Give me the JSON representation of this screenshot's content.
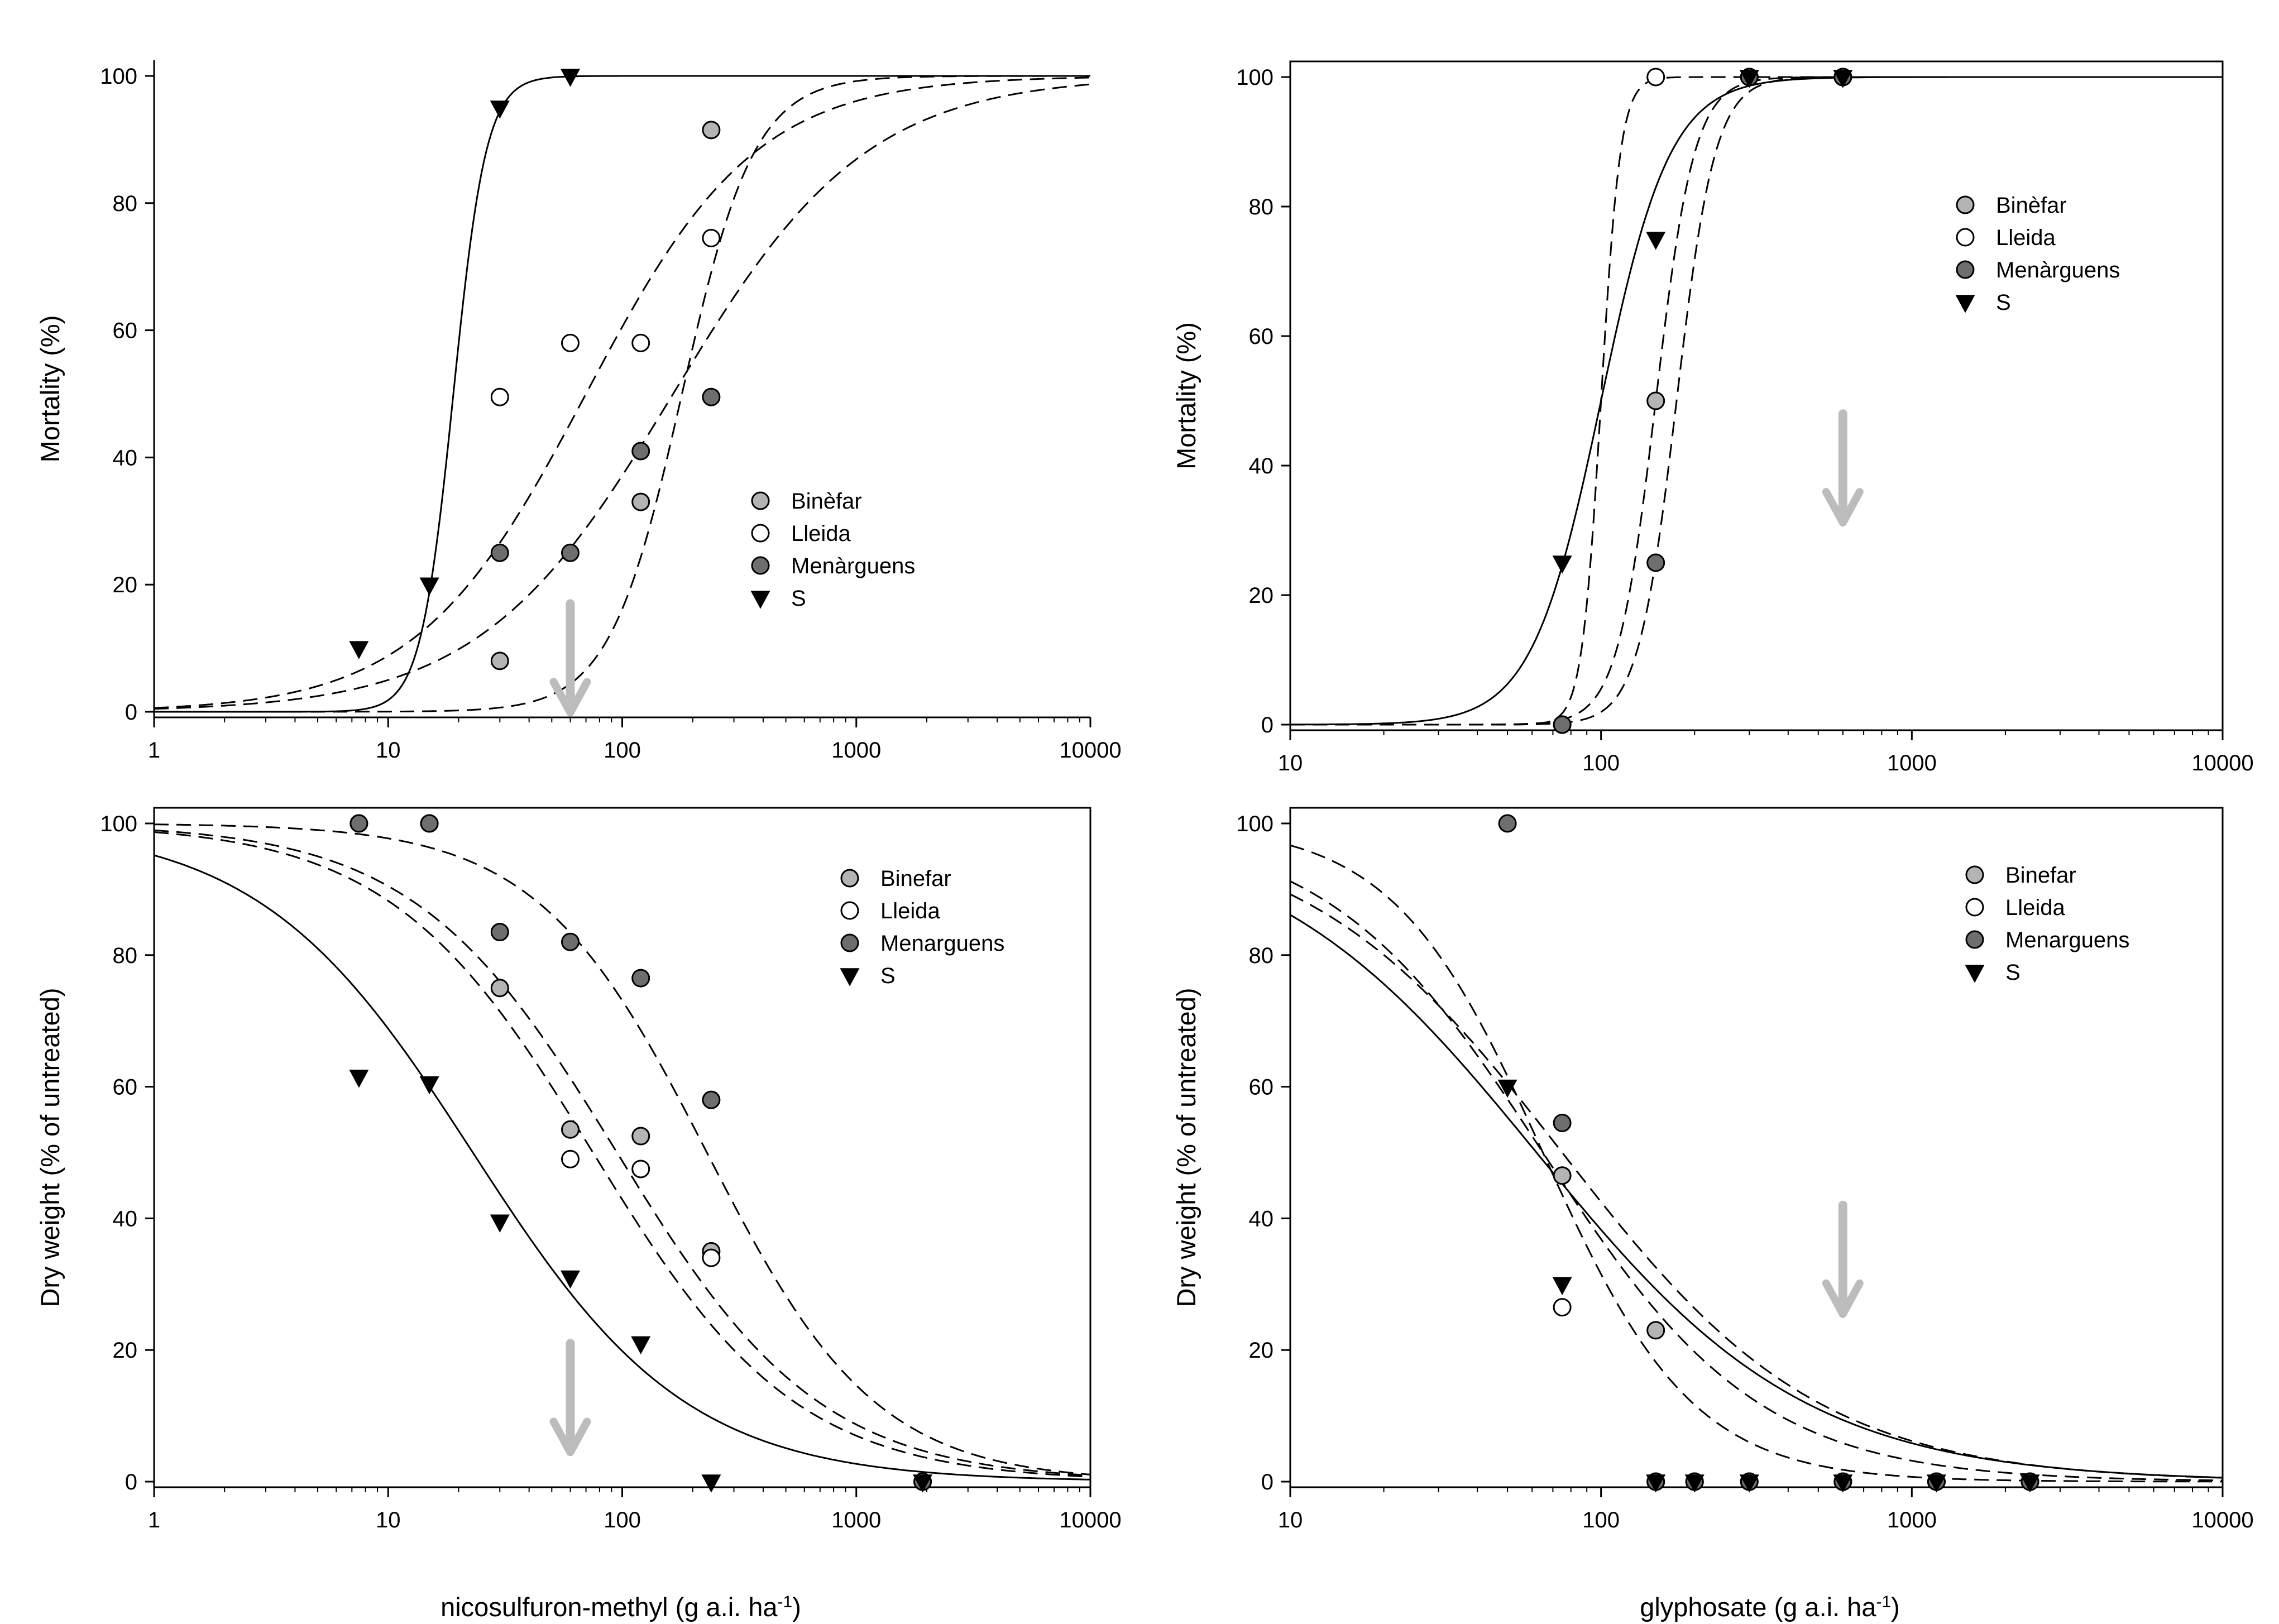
{
  "colors": {
    "Binefar": "#b4b4b4",
    "Lleida": "#ffffff",
    "Menarguens": "#6e6e6e",
    "S": "#000000",
    "arrow": "#bcbcbc"
  },
  "axis_titles": {
    "x_left": "nicosulfuron-methyl (g a.i. ha",
    "x_right": "glyphosate (g a.i. ha",
    "x_sup": "-1",
    "x_close": ")"
  },
  "chart_data": [
    {
      "id": "top-left",
      "type": "scatter",
      "title": "",
      "xscale": "log",
      "xlim": [
        1,
        10000
      ],
      "ylim": [
        0,
        100
      ],
      "xticks": [
        "1",
        "10",
        "100",
        "1000",
        "10000"
      ],
      "yticks": [
        "0",
        "20",
        "40",
        "60",
        "80",
        "100"
      ],
      "ylabel": "Mortality (%)",
      "xlabel": "",
      "legend": {
        "position": "center-right",
        "entries": [
          {
            "key": "Binefar",
            "label": "Binèfar"
          },
          {
            "key": "Lleida",
            "label": "Lleida"
          },
          {
            "key": "Menarguens",
            "label": "Menàrguens"
          },
          {
            "key": "S",
            "label": "S"
          }
        ]
      },
      "arrow_at_dose": 60,
      "series": [
        {
          "key": "Binefar",
          "marker": "circle",
          "points": [
            [
              30,
              8
            ],
            [
              120,
              33
            ],
            [
              240,
              91.5
            ]
          ],
          "curve": {
            "kind": "increasing",
            "ed50": 180,
            "slope": 2.8,
            "line": "dashed"
          }
        },
        {
          "key": "Lleida",
          "marker": "circle",
          "points": [
            [
              30,
              49.5
            ],
            [
              60,
              58
            ],
            [
              120,
              58
            ],
            [
              240,
              74.5
            ]
          ],
          "curve": {
            "kind": "increasing",
            "ed50": 70,
            "slope": 1.2,
            "line": "dashed"
          }
        },
        {
          "key": "Menarguens",
          "marker": "circle",
          "points": [
            [
              30,
              25
            ],
            [
              60,
              25
            ],
            [
              120,
              41
            ],
            [
              240,
              49.5
            ]
          ],
          "curve": {
            "kind": "increasing",
            "ed50": 165,
            "slope": 1.05,
            "line": "dashed"
          }
        },
        {
          "key": "S",
          "marker": "triangle",
          "points": [
            [
              7.5,
              10
            ],
            [
              15,
              20
            ],
            [
              30,
              95
            ],
            [
              60,
              100
            ]
          ],
          "curve": {
            "kind": "increasing",
            "ed50": 19,
            "slope": 6.2,
            "line": "solid"
          }
        }
      ]
    },
    {
      "id": "top-right",
      "type": "scatter",
      "title": "",
      "xscale": "log",
      "xlim": [
        10,
        10000
      ],
      "ylim": [
        0,
        100
      ],
      "xticks": [
        "10",
        "100",
        "1000",
        "10000"
      ],
      "yticks": [
        "0",
        "20",
        "40",
        "60",
        "80",
        "100"
      ],
      "ylabel": "Mortality (%)",
      "xlabel": "",
      "legend": {
        "position": "top-right",
        "entries": [
          {
            "key": "Binefar",
            "label": "Binèfar"
          },
          {
            "key": "Lleida",
            "label": "Lleida"
          },
          {
            "key": "Menarguens",
            "label": "Menàrguens"
          },
          {
            "key": "S",
            "label": "S"
          }
        ]
      },
      "arrow_at_dose": 600,
      "series": [
        {
          "key": "Binefar",
          "marker": "circle",
          "points": [
            [
              75,
              0
            ],
            [
              150,
              50
            ],
            [
              300,
              100
            ],
            [
              600,
              100
            ]
          ],
          "curve": {
            "kind": "increasing",
            "ed50": 150,
            "slope": 7,
            "line": "dashed"
          }
        },
        {
          "key": "Lleida",
          "marker": "circle",
          "points": [
            [
              75,
              0
            ],
            [
              150,
              100
            ],
            [
              300,
              100
            ],
            [
              600,
              100
            ]
          ],
          "curve": {
            "kind": "increasing",
            "ed50": 100,
            "slope": 14,
            "line": "dashed"
          }
        },
        {
          "key": "Menarguens",
          "marker": "circle",
          "points": [
            [
              75,
              0
            ],
            [
              150,
              25
            ],
            [
              300,
              100
            ],
            [
              600,
              100
            ]
          ],
          "curve": {
            "kind": "increasing",
            "ed50": 175,
            "slope": 7,
            "line": "dashed"
          }
        },
        {
          "key": "S",
          "marker": "triangle",
          "points": [
            [
              75,
              25
            ],
            [
              150,
              75
            ],
            [
              300,
              100
            ],
            [
              600,
              100
            ]
          ],
          "curve": {
            "kind": "increasing",
            "ed50": 100,
            "slope": 3.9,
            "line": "solid"
          }
        }
      ]
    },
    {
      "id": "bottom-left",
      "type": "scatter",
      "title": "",
      "xscale": "log",
      "xlim": [
        1,
        10000
      ],
      "ylim": [
        0,
        100
      ],
      "xticks": [
        "1",
        "10",
        "100",
        "1000",
        "10000"
      ],
      "yticks": [
        "0",
        "20",
        "40",
        "60",
        "80",
        "100"
      ],
      "ylabel": "Dry weight (% of untreated)",
      "xlabel": "nicosulfuron-methyl (g a.i. ha-1)",
      "legend": {
        "position": "top-right",
        "entries": [
          {
            "key": "Binefar",
            "label": "Binefar"
          },
          {
            "key": "Lleida",
            "label": "Lleida"
          },
          {
            "key": "Menarguens",
            "label": "Menarguens"
          },
          {
            "key": "S",
            "label": "S"
          }
        ]
      },
      "arrow_at_dose": 60,
      "series": [
        {
          "key": "Binefar",
          "marker": "circle",
          "points": [
            [
              7.5,
              100
            ],
            [
              15,
              100
            ],
            [
              30,
              75
            ],
            [
              60,
              53.5
            ],
            [
              120,
              52.5
            ],
            [
              240,
              35
            ],
            [
              1920,
              0
            ]
          ],
          "curve": {
            "kind": "decreasing",
            "ed50": 95,
            "slope": 1.0,
            "line": "dashed"
          }
        },
        {
          "key": "Lleida",
          "marker": "circle",
          "points": [
            [
              60,
              49
            ],
            [
              120,
              47.5
            ],
            [
              240,
              34
            ]
          ],
          "curve": {
            "kind": "decreasing",
            "ed50": 75,
            "slope": 1.0,
            "line": "dashed"
          }
        },
        {
          "key": "Menarguens",
          "marker": "circle",
          "points": [
            [
              7.5,
              100
            ],
            [
              15,
              100
            ],
            [
              30,
              83.5
            ],
            [
              60,
              82
            ],
            [
              120,
              76.5
            ],
            [
              240,
              58
            ],
            [
              1920,
              0
            ]
          ],
          "curve": {
            "kind": "decreasing",
            "ed50": 230,
            "slope": 1.2,
            "line": "dashed"
          }
        },
        {
          "key": "S",
          "marker": "triangle",
          "points": [
            [
              7.5,
              61.5
            ],
            [
              15,
              60.5
            ],
            [
              30,
              39.5
            ],
            [
              60,
              31
            ],
            [
              120,
              21
            ],
            [
              240,
              0
            ],
            [
              1920,
              0
            ]
          ],
          "curve": {
            "kind": "decreasing",
            "ed50": 23,
            "slope": 0.95,
            "line": "solid"
          }
        }
      ]
    },
    {
      "id": "bottom-right",
      "type": "scatter",
      "title": "",
      "xscale": "log",
      "xlim": [
        10,
        10000
      ],
      "ylim": [
        0,
        100
      ],
      "xticks": [
        "10",
        "100",
        "1000",
        "10000"
      ],
      "yticks": [
        "0",
        "20",
        "40",
        "60",
        "80",
        "100"
      ],
      "ylabel": "Dry weight (% of untreated)",
      "xlabel": "glyphosate (g a.i. ha-1)",
      "legend": {
        "position": "top-right",
        "entries": [
          {
            "key": "Binefar",
            "label": "Binefar"
          },
          {
            "key": "Lleida",
            "label": "Lleida"
          },
          {
            "key": "Menarguens",
            "label": "Menarguens"
          },
          {
            "key": "S",
            "label": "S"
          }
        ]
      },
      "arrow_at_dose": 600,
      "series": [
        {
          "key": "Binefar",
          "marker": "circle",
          "points": [
            [
              75,
              46.5
            ],
            [
              150,
              23
            ],
            [
              200,
              0
            ],
            [
              300,
              0
            ],
            [
              600,
              0
            ],
            [
              1200,
              0
            ],
            [
              2400,
              0
            ]
          ],
          "curve": {
            "kind": "decreasing",
            "ed50": 65,
            "slope": 1.8,
            "line": "dashed"
          }
        },
        {
          "key": "Lleida",
          "marker": "circle",
          "points": [
            [
              75,
              26.5
            ],
            [
              150,
              0
            ],
            [
              200,
              0
            ],
            [
              300,
              0
            ],
            [
              600,
              0
            ],
            [
              1200,
              0
            ],
            [
              2400,
              0
            ]
          ],
          "curve": {
            "kind": "decreasing",
            "ed50": 65,
            "slope": 1.25,
            "line": "dashed"
          }
        },
        {
          "key": "Menarguens",
          "marker": "circle",
          "points": [
            [
              50,
              100
            ],
            [
              75,
              54.5
            ],
            [
              150,
              0
            ],
            [
              200,
              0
            ],
            [
              300,
              0
            ],
            [
              600,
              0
            ],
            [
              1200,
              0
            ],
            [
              2400,
              0
            ]
          ],
          "curve": {
            "kind": "decreasing",
            "ed50": 75,
            "slope": 1.05,
            "line": "dashed"
          }
        },
        {
          "key": "S",
          "marker": "triangle",
          "points": [
            [
              50,
              60
            ],
            [
              75,
              30
            ],
            [
              150,
              0
            ],
            [
              200,
              0
            ],
            [
              300,
              0
            ],
            [
              600,
              0
            ],
            [
              1200,
              0
            ],
            [
              2400,
              0
            ]
          ],
          "curve": {
            "kind": "decreasing",
            "ed50": 62,
            "slope": 1.0,
            "line": "solid"
          }
        }
      ]
    }
  ]
}
